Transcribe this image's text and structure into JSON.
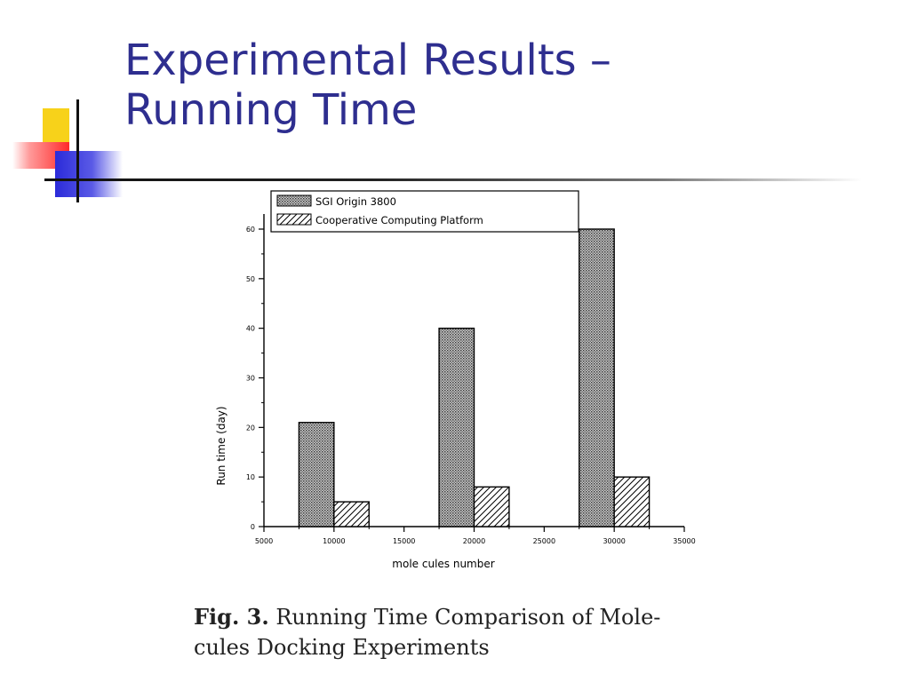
{
  "slide": {
    "title_line1": "Experimental Results –",
    "title_line2": "Running Time",
    "caption_label": "Fig. 3.",
    "caption_text": " Running Time Comparison of Mole-",
    "caption_text2": "cules Docking Experiments"
  },
  "colors": {
    "title": "#2e2e8f",
    "accent_yellow": "#f7d21a",
    "accent_red": "#ff2a2a",
    "accent_blue": "#2b2bd9"
  },
  "chart_data": {
    "type": "bar",
    "xlabel": "mole cules number",
    "ylabel": "Run time (day)",
    "xlim": [
      5000,
      35000
    ],
    "ylim": [
      0,
      60
    ],
    "x_ticks": [
      "5000",
      "10000",
      "15000",
      "20000",
      "25000",
      "30000",
      "35000"
    ],
    "x_tick_values": [
      5000,
      10000,
      15000,
      20000,
      25000,
      30000,
      35000
    ],
    "y_ticks": [
      "0",
      "10",
      "20",
      "30",
      "40",
      "50",
      "60"
    ],
    "y_tick_values": [
      0,
      10,
      20,
      30,
      40,
      50,
      60
    ],
    "legend_position": "top",
    "categories": [
      10000,
      20000,
      30000
    ],
    "series": [
      {
        "name": "SGI Origin 3800",
        "pattern": "crosshatch",
        "values": [
          21,
          40,
          60
        ]
      },
      {
        "name": "Cooperative Computing Platform",
        "pattern": "diagonal",
        "values": [
          5,
          8,
          10
        ]
      }
    ]
  }
}
